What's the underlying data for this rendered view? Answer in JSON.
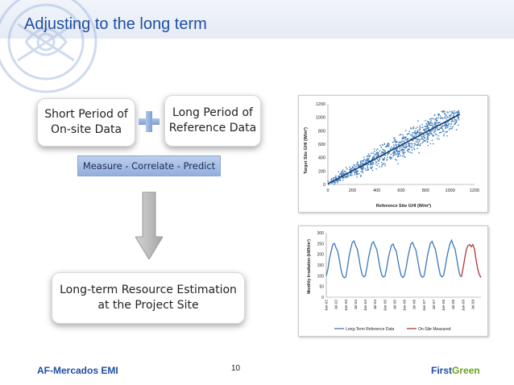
{
  "slide": {
    "title": "Adjusting to the long term",
    "page_number": "10",
    "footer_left": "AF-Mercados EMI",
    "brand_part1": "First",
    "brand_part2": "Green"
  },
  "diagram": {
    "short_period": [
      "Short Period of",
      "On-site Data"
    ],
    "long_period": [
      "Long Period of",
      "Reference Data"
    ],
    "mcp_label": "Measure - Correlate - Predict",
    "result": [
      "Long-term Resource Estimation",
      "at the Project Site"
    ]
  },
  "colors": {
    "title_blue": "#1f4ea3",
    "brand_green": "#6aa121",
    "series_blue": "#3b78b8",
    "series_red": "#b23535"
  },
  "chart_data": [
    {
      "type": "scatter",
      "xlabel": "Reference Site GHI (W/m²)",
      "ylabel": "Target Site GHI (W/m²)",
      "xlim": [
        0,
        1200
      ],
      "ylim": [
        0,
        1200
      ],
      "x_ticks": [
        "0",
        "200",
        "400",
        "600",
        "800",
        "1000",
        "1200"
      ],
      "y_ticks": [
        "0",
        "200",
        "400",
        "600",
        "800",
        "1000",
        "1200"
      ],
      "trend": {
        "slope": 0.96,
        "intercept": 10,
        "x_range": [
          0,
          1080
        ]
      },
      "note": "dense cloud of points approx. 0–1100 along the trend line"
    },
    {
      "type": "line",
      "ylabel": "Monthly Irradiation (kWh/m²)",
      "ylim": [
        0,
        300
      ],
      "y_ticks": [
        "0",
        "50",
        "100",
        "150",
        "200",
        "250",
        "300"
      ],
      "x_ticks": [
        "Jan-02",
        "Jul-02",
        "Jan-03",
        "Jul-03",
        "Jan-04",
        "Jul-04",
        "Jan-05",
        "Jul-05",
        "Jan-06",
        "Jul-06",
        "Jan-07",
        "Jul-07",
        "Jan-08",
        "Jul-08",
        "Jan-09",
        "Jul-09"
      ],
      "series": [
        {
          "name": "Long-Term Reference Data",
          "start": "Jan-02",
          "end": "Dec-08",
          "values": [
            100,
            130,
            180,
            215,
            245,
            250,
            230,
            215,
            175,
            130,
            100,
            90,
            95,
            140,
            190,
            225,
            255,
            262,
            240,
            225,
            185,
            140,
            105,
            95,
            100,
            140,
            185,
            220,
            250,
            258,
            238,
            222,
            180,
            138,
            104,
            94,
            98,
            132,
            178,
            212,
            240,
            248,
            228,
            214,
            172,
            132,
            100,
            92,
            100,
            136,
            182,
            218,
            248,
            255,
            235,
            220,
            178,
            136,
            102,
            93,
            98,
            140,
            186,
            222,
            252,
            260,
            240,
            224,
            182,
            140,
            104,
            95,
            100,
            138,
            184,
            220,
            250,
            265,
            242,
            226,
            184,
            138,
            103,
            95
          ]
        },
        {
          "name": "On-Site Measured",
          "start": "Dec-08",
          "end": "Dec-09",
          "values": [
            95,
            135,
            180,
            220,
            240,
            245,
            235,
            245,
            225,
            175,
            130,
            105,
            92
          ]
        }
      ]
    }
  ]
}
